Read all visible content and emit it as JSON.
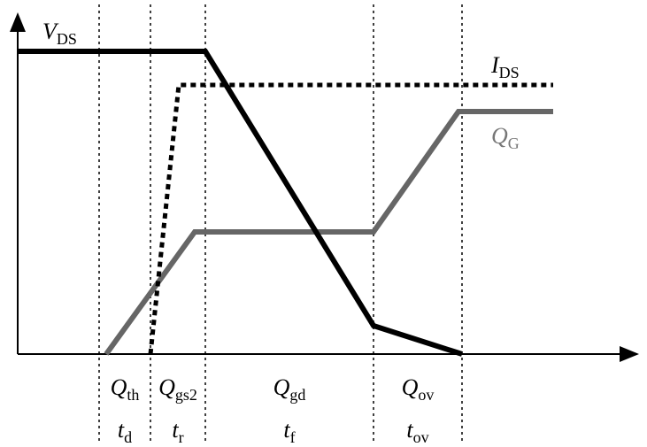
{
  "labels": {
    "vds": {
      "main": "V",
      "sub": "DS"
    },
    "ids": {
      "main": "I",
      "sub": "DS"
    },
    "qg": {
      "main": "Q",
      "sub": "G"
    }
  },
  "intervals": [
    {
      "charge": {
        "main": "Q",
        "sub": "th"
      },
      "time": {
        "main": "t",
        "sub": "d"
      }
    },
    {
      "charge": {
        "main": "Q",
        "sub": "gs2"
      },
      "time": {
        "main": "t",
        "sub": "r"
      }
    },
    {
      "charge": {
        "main": "Q",
        "sub": "gd"
      },
      "time": {
        "main": "t",
        "sub": "f"
      }
    },
    {
      "charge": {
        "main": "Q",
        "sub": "ov"
      },
      "time": {
        "main": "t",
        "sub": "ov"
      }
    }
  ]
}
